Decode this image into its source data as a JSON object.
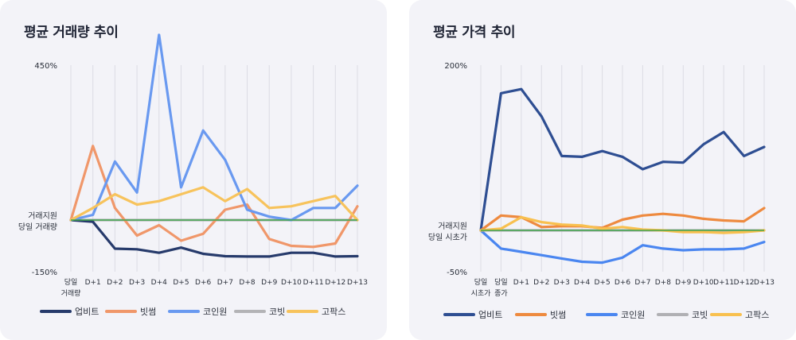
{
  "chart_data": [
    {
      "type": "line",
      "title": "평균 거래량 추이",
      "x": [
        "당일|거래량",
        "D+1",
        "D+2",
        "D+3",
        "D+4",
        "D+5",
        "D+6",
        "D+7",
        "D+8",
        "D+9",
        "D+10",
        "D+11",
        "D+12",
        "D+13"
      ],
      "ylim": [
        -150,
        450
      ],
      "ytick_labels": [
        {
          "value": 450,
          "label": "450%"
        },
        {
          "value": 0,
          "label": "거래지원|당일 거래량"
        },
        {
          "value": -150,
          "label": "-150%"
        }
      ],
      "grid": true,
      "legend": "bottom",
      "series": [
        {
          "name": "업비트",
          "color": "#263a6b",
          "values": [
            0,
            -5,
            -83,
            -85,
            -95,
            -80,
            -98,
            -105,
            -106,
            -106,
            -95,
            -95,
            -106,
            -105
          ]
        },
        {
          "name": "빗썸",
          "color": "#f0976a",
          "values": [
            0,
            215,
            35,
            -45,
            -15,
            -60,
            -40,
            30,
            45,
            -55,
            -75,
            -78,
            -68,
            40
          ]
        },
        {
          "name": "코인원",
          "color": "#6999f0",
          "values": [
            0,
            15,
            170,
            80,
            538,
            95,
            260,
            175,
            30,
            10,
            0,
            35,
            35,
            100
          ]
        },
        {
          "name": "코빗",
          "color": "#b3b3b6",
          "values": [
            0,
            0,
            0,
            0,
            0,
            0,
            0,
            0,
            0,
            0,
            0,
            0,
            0,
            0
          ]
        },
        {
          "name": "고팍스",
          "color": "#f7c35c",
          "values": [
            0,
            35,
            75,
            45,
            55,
            75,
            95,
            55,
            90,
            35,
            40,
            55,
            70,
            0
          ]
        }
      ],
      "baseline_color": "#3fa64b"
    },
    {
      "type": "line",
      "title": "평균 가격 추이",
      "x": [
        "당일|시초가",
        "당일|종가",
        "D+1",
        "D+2",
        "D+3",
        "D+4",
        "D+5",
        "D+6",
        "D+7",
        "D+8",
        "D+9",
        "D+10",
        "D+11",
        "D+12",
        "D+13"
      ],
      "ylim": [
        -50,
        200
      ],
      "ytick_labels": [
        {
          "value": 200,
          "label": "200%"
        },
        {
          "value": 0,
          "label": "거래지원|당일 시초가"
        },
        {
          "value": -50,
          "label": "-50%"
        }
      ],
      "grid": true,
      "legend": "bottom",
      "series": [
        {
          "name": "업비트",
          "color": "#2e4e92",
          "values": [
            0,
            166,
            171,
            138,
            90,
            89,
            96,
            89,
            74,
            83,
            82,
            104,
            119,
            90,
            101
          ]
        },
        {
          "name": "빗썸",
          "color": "#ee8a3f",
          "values": [
            0,
            18,
            16,
            4,
            5,
            5,
            3,
            13,
            18,
            20,
            18,
            14,
            12,
            11,
            27
          ]
        },
        {
          "name": "코인원",
          "color": "#4a86f0",
          "values": [
            0,
            -22,
            -26,
            -30,
            -34,
            -38,
            -39,
            -33,
            -18,
            -22,
            -24,
            -23,
            -23,
            -22,
            -14
          ]
        },
        {
          "name": "코빗",
          "color": "#b0b0b4",
          "values": [
            0,
            0,
            0,
            0,
            0,
            0,
            0,
            0,
            0,
            0,
            0,
            0,
            0,
            0,
            0
          ]
        },
        {
          "name": "고팍스",
          "color": "#f8c04f",
          "values": [
            0,
            2,
            16,
            10,
            7,
            6,
            2,
            4,
            1,
            0,
            -2,
            -2,
            -3,
            -2,
            0
          ]
        }
      ],
      "baseline_color": "#3fa64b"
    }
  ]
}
